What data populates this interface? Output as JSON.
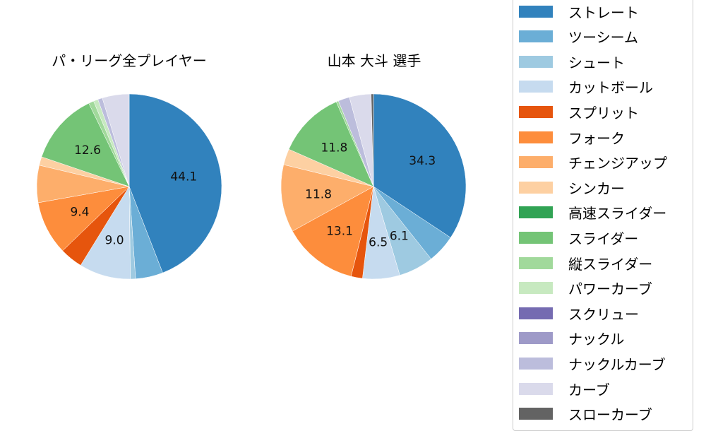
{
  "chart_data": [
    {
      "type": "pie",
      "title": "パ・リーグ全プレイヤー",
      "start_angle": 90,
      "direction": "clockwise",
      "categories": [
        "ストレート",
        "ツーシーム",
        "シュート",
        "カットボール",
        "スプリット",
        "フォーク",
        "チェンジアップ",
        "シンカー",
        "スライダー",
        "縦スライダー",
        "パワーカーブ",
        "ナックルカーブ",
        "カーブ"
      ],
      "values": [
        44.1,
        4.8,
        0.9,
        9.0,
        4.0,
        9.4,
        6.5,
        1.5,
        12.6,
        0.9,
        0.8,
        0.8,
        4.7
      ],
      "labels_shown": [
        "44.1",
        "",
        "",
        "9.0",
        "",
        "9.4",
        "",
        "",
        "12.6",
        "",
        "",
        "",
        ""
      ]
    },
    {
      "type": "pie",
      "title": "山本 大斗  選手",
      "start_angle": 90,
      "direction": "clockwise",
      "categories": [
        "ストレート",
        "ツーシーム",
        "シュート",
        "カットボール",
        "スプリット",
        "フォーク",
        "チェンジアップ",
        "シンカー",
        "スライダー",
        "縦スライダー",
        "ナックルカーブ",
        "カーブ",
        "スローカーブ"
      ],
      "values": [
        34.3,
        5.0,
        6.1,
        6.5,
        2.0,
        13.1,
        11.8,
        2.8,
        11.8,
        0.4,
        2.0,
        3.8,
        0.4
      ],
      "labels_shown": [
        "34.3",
        "",
        "6.1",
        "6.5",
        "",
        "13.1",
        "11.8",
        "",
        "11.8",
        "",
        "",
        "",
        ""
      ]
    }
  ],
  "titles": {
    "left": "パ・リーグ全プレイヤー",
    "right": "山本 大斗  選手"
  },
  "legend": {
    "position": "right",
    "items": [
      {
        "label": "ストレート",
        "color": "#3182bd"
      },
      {
        "label": "ツーシーム",
        "color": "#6baed6"
      },
      {
        "label": "シュート",
        "color": "#9ecae1"
      },
      {
        "label": "カットボール",
        "color": "#c6dbef"
      },
      {
        "label": "スプリット",
        "color": "#e6550d"
      },
      {
        "label": "フォーク",
        "color": "#fd8d3c"
      },
      {
        "label": "チェンジアップ",
        "color": "#fdae6b"
      },
      {
        "label": "シンカー",
        "color": "#fdd0a2"
      },
      {
        "label": "高速スライダー",
        "color": "#31a354"
      },
      {
        "label": "スライダー",
        "color": "#74c476"
      },
      {
        "label": "縦スライダー",
        "color": "#a1d99b"
      },
      {
        "label": "パワーカーブ",
        "color": "#c7e9c0"
      },
      {
        "label": "スクリュー",
        "color": "#756bb1"
      },
      {
        "label": "ナックル",
        "color": "#9e9ac8"
      },
      {
        "label": "ナックルカーブ",
        "color": "#bcbddc"
      },
      {
        "label": "カーブ",
        "color": "#dadaeb"
      },
      {
        "label": "スローカーブ",
        "color": "#636363"
      }
    ]
  }
}
